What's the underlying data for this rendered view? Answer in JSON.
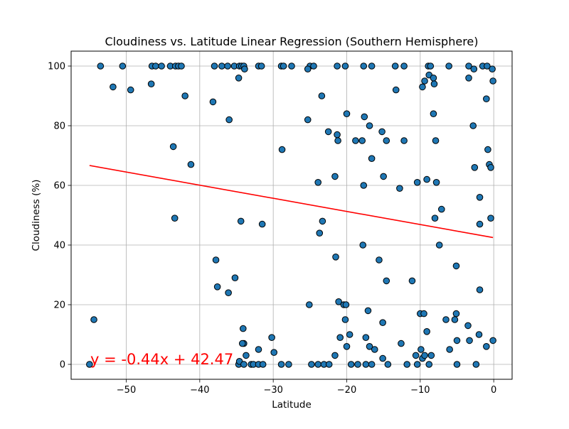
{
  "chart_data": {
    "type": "scatter",
    "title": "Cloudiness vs. Latitude Linear Regression (Southern Hemisphere)",
    "xlabel": "Latitude",
    "ylabel": "Cloudiness (%)",
    "xlim": [
      -57.5,
      2.5
    ],
    "ylim": [
      -5,
      105
    ],
    "xticks": [
      -50,
      -40,
      -30,
      -20,
      -10,
      0
    ],
    "yticks": [
      0,
      20,
      40,
      60,
      80,
      100
    ],
    "grid": true,
    "regression": {
      "equation": "y = -0.44x + 42.47",
      "slope": -0.44,
      "intercept": 42.47,
      "x_range": [
        -55.0,
        -0.1
      ],
      "color": "#ff0000",
      "equation_color": "#ff0000"
    },
    "point_color": "#1f77b4",
    "point_edge_color": "#000000",
    "points": [
      [
        -53.5,
        100
      ],
      [
        -50.5,
        100
      ],
      [
        -46.5,
        100
      ],
      [
        -46.0,
        100
      ],
      [
        -45.2,
        100
      ],
      [
        -44.0,
        100
      ],
      [
        -43.3,
        100
      ],
      [
        -42.9,
        100
      ],
      [
        -42.5,
        100
      ],
      [
        -38.0,
        100
      ],
      [
        -37.0,
        100
      ],
      [
        -36.2,
        100
      ],
      [
        -35.3,
        100
      ],
      [
        -34.6,
        100
      ],
      [
        -34.3,
        100
      ],
      [
        -34.0,
        100
      ],
      [
        -32.0,
        100
      ],
      [
        -31.6,
        100
      ],
      [
        -28.9,
        100
      ],
      [
        -28.6,
        100
      ],
      [
        -27.5,
        100
      ],
      [
        -25.0,
        100
      ],
      [
        -24.5,
        100
      ],
      [
        -21.3,
        100
      ],
      [
        -20.2,
        100
      ],
      [
        -17.7,
        100
      ],
      [
        -16.6,
        100
      ],
      [
        -13.4,
        100
      ],
      [
        -12.2,
        100
      ],
      [
        -8.9,
        100
      ],
      [
        -8.6,
        100
      ],
      [
        -6.1,
        100
      ],
      [
        -3.4,
        100
      ],
      [
        -1.5,
        100
      ],
      [
        -0.9,
        100
      ],
      [
        -51.8,
        93
      ],
      [
        -49.4,
        92
      ],
      [
        -46.6,
        94
      ],
      [
        -42.0,
        90
      ],
      [
        -38.2,
        88
      ],
      [
        -34.7,
        96
      ],
      [
        -33.9,
        99
      ],
      [
        -25.3,
        99
      ],
      [
        -23.4,
        90
      ],
      [
        -13.3,
        92
      ],
      [
        -9.7,
        93
      ],
      [
        -9.4,
        95
      ],
      [
        -8.8,
        97
      ],
      [
        -8.2,
        96
      ],
      [
        -8.1,
        94
      ],
      [
        -3.4,
        96
      ],
      [
        -2.7,
        99
      ],
      [
        -1.0,
        89
      ],
      [
        -0.2,
        99
      ],
      [
        -0.1,
        95
      ],
      [
        -36.0,
        82
      ],
      [
        -25.3,
        82
      ],
      [
        -22.5,
        78
      ],
      [
        -21.3,
        77
      ],
      [
        -21.2,
        75
      ],
      [
        -20.0,
        84
      ],
      [
        -18.8,
        75
      ],
      [
        -17.9,
        75
      ],
      [
        -17.6,
        83
      ],
      [
        -16.9,
        80
      ],
      [
        -15.2,
        78
      ],
      [
        -14.6,
        75
      ],
      [
        -12.2,
        75
      ],
      [
        -8.2,
        84
      ],
      [
        -7.9,
        75
      ],
      [
        -2.8,
        80
      ],
      [
        -43.6,
        73
      ],
      [
        -41.2,
        67
      ],
      [
        -28.8,
        72
      ],
      [
        -21.6,
        63
      ],
      [
        -23.9,
        61
      ],
      [
        -17.7,
        60
      ],
      [
        -16.6,
        69
      ],
      [
        -15.0,
        63
      ],
      [
        -12.8,
        59
      ],
      [
        -10.4,
        61
      ],
      [
        -9.1,
        62
      ],
      [
        -7.8,
        61
      ],
      [
        -7.1,
        52
      ],
      [
        -8.0,
        49
      ],
      [
        -2.6,
        66
      ],
      [
        -0.8,
        72
      ],
      [
        -0.6,
        67
      ],
      [
        -0.4,
        66
      ],
      [
        -1.9,
        56
      ],
      [
        -1.9,
        47
      ],
      [
        -0.4,
        49
      ],
      [
        -43.4,
        49
      ],
      [
        -34.4,
        48
      ],
      [
        -31.5,
        47
      ],
      [
        -23.3,
        48
      ],
      [
        -23.7,
        44
      ],
      [
        -17.8,
        40
      ],
      [
        -21.5,
        36
      ],
      [
        -15.6,
        35
      ],
      [
        -7.4,
        40
      ],
      [
        -5.1,
        33
      ],
      [
        -37.8,
        35
      ],
      [
        -37.6,
        26
      ],
      [
        -36.1,
        24
      ],
      [
        -35.2,
        29
      ],
      [
        -25.1,
        20
      ],
      [
        -21.1,
        21
      ],
      [
        -20.4,
        20
      ],
      [
        -20.1,
        20
      ],
      [
        -14.6,
        28
      ],
      [
        -11.1,
        28
      ],
      [
        -1.9,
        25
      ],
      [
        -54.4,
        15
      ],
      [
        -34.1,
        12
      ],
      [
        -34.0,
        7
      ],
      [
        -34.2,
        7
      ],
      [
        -30.2,
        9
      ],
      [
        -32.0,
        5
      ],
      [
        -29.9,
        4
      ],
      [
        -33.7,
        3
      ],
      [
        -20.2,
        15
      ],
      [
        -20.9,
        9
      ],
      [
        -19.6,
        10
      ],
      [
        -20.0,
        6
      ],
      [
        -21.6,
        3
      ],
      [
        -17.4,
        9
      ],
      [
        -17.1,
        18
      ],
      [
        -16.9,
        6
      ],
      [
        -16.2,
        5
      ],
      [
        -15.1,
        14
      ],
      [
        -15.1,
        2
      ],
      [
        -12.6,
        7
      ],
      [
        -10.0,
        17
      ],
      [
        -9.5,
        17
      ],
      [
        -9.1,
        11
      ],
      [
        -9.9,
        5
      ],
      [
        -10.6,
        3
      ],
      [
        -9.7,
        2
      ],
      [
        -9.4,
        3
      ],
      [
        -8.5,
        3
      ],
      [
        -6.5,
        15
      ],
      [
        -5.1,
        17
      ],
      [
        -5.3,
        15
      ],
      [
        -6.0,
        5
      ],
      [
        -5.0,
        8
      ],
      [
        -3.5,
        13
      ],
      [
        -3.3,
        8
      ],
      [
        -2.0,
        10
      ],
      [
        -1.0,
        6
      ],
      [
        -0.1,
        8
      ],
      [
        -55.0,
        0
      ],
      [
        -34.7,
        0
      ],
      [
        -34.6,
        1
      ],
      [
        -34.0,
        0
      ],
      [
        -33.0,
        0
      ],
      [
        -32.7,
        0
      ],
      [
        -32.0,
        0
      ],
      [
        -31.4,
        0
      ],
      [
        -28.9,
        0
      ],
      [
        -27.9,
        0
      ],
      [
        -24.8,
        0
      ],
      [
        -23.9,
        0
      ],
      [
        -23.1,
        0
      ],
      [
        -22.4,
        0
      ],
      [
        -19.4,
        0
      ],
      [
        -18.5,
        0
      ],
      [
        -17.4,
        0
      ],
      [
        -16.6,
        0
      ],
      [
        -14.4,
        0
      ],
      [
        -11.8,
        0
      ],
      [
        -10.4,
        0
      ],
      [
        -8.8,
        0
      ],
      [
        -5.0,
        0
      ],
      [
        -2.4,
        0
      ]
    ]
  }
}
